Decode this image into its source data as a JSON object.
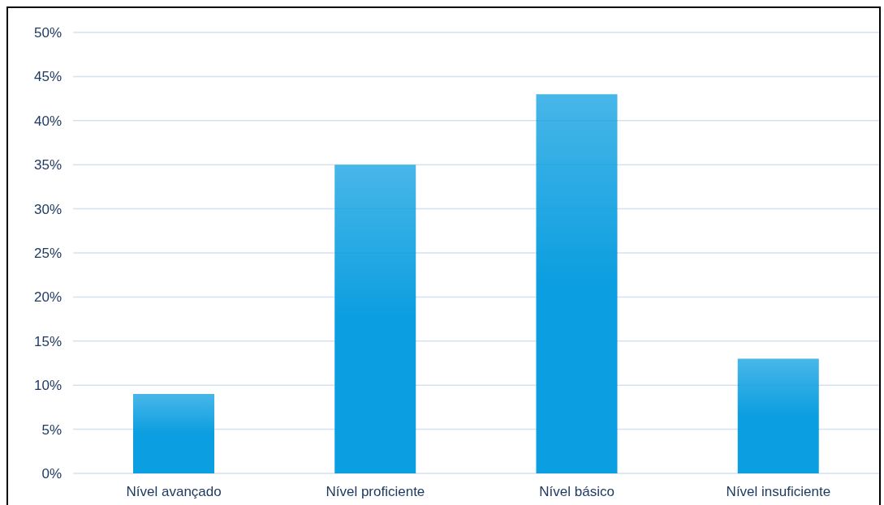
{
  "chart_data": {
    "type": "bar",
    "categories": [
      "Nível avançado",
      "Nível proficiente",
      "Nível básico",
      "Nível insuficiente"
    ],
    "values": [
      9,
      35,
      43,
      13
    ],
    "color": "#0b9ee0",
    "ylim": [
      0,
      50
    ],
    "yticks": [
      {
        "value": 0,
        "label": "0%"
      },
      {
        "value": 5,
        "label": "5%"
      },
      {
        "value": 10,
        "label": "10%"
      },
      {
        "value": 15,
        "label": "15%"
      },
      {
        "value": 20,
        "label": "20%"
      },
      {
        "value": 25,
        "label": "25%"
      },
      {
        "value": 30,
        "label": "30%"
      },
      {
        "value": 35,
        "label": "35%"
      },
      {
        "value": 40,
        "label": "40%"
      },
      {
        "value": 45,
        "label": "45%"
      },
      {
        "value": 50,
        "label": "50%"
      }
    ],
    "grid": "y",
    "legend": false
  }
}
